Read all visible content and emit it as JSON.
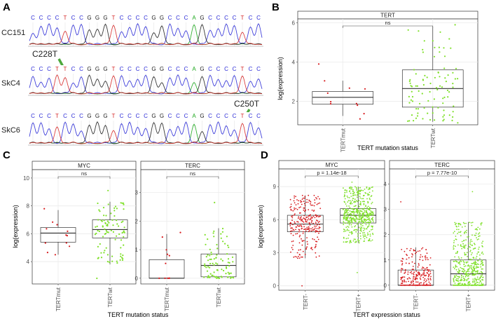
{
  "figure": {
    "panel_labels": [
      "A",
      "B",
      "C",
      "D"
    ],
    "colors": {
      "mut": "#d7191c",
      "wt": "#7fe02a",
      "box": "#333333",
      "grid": "#ebebeb",
      "strip_fill": "#ffffff",
      "arrow": "#4ea83c"
    }
  },
  "panelA": {
    "rows": [
      {
        "label": "CC151",
        "bases": "CCCCTCCGGGTCCCCGGCCCAGCCCCTCC"
      },
      {
        "label": "SkC4",
        "bases": "CCCTTCCGGGTCCCCGGCCCAGCCCCTCC",
        "mutation": "C228T"
      },
      {
        "label": "SkC6",
        "bases": "CCCTCCCGGGTCCCCGGCCCAGCCCCTCC",
        "mutation": "C250T"
      }
    ],
    "base_colors": {
      "A": "#1fa81f",
      "C": "#2b2bd6",
      "G": "#222222",
      "T": "#d62b2b"
    }
  },
  "chart_data": [
    {
      "id": "B",
      "type": "boxplot",
      "strips": [
        "TERT"
      ],
      "categories": [
        "TERTmut",
        "TERTwt"
      ],
      "ylabel": "log(expression)",
      "xlabel": "TERT mutation status",
      "ylim": [
        0.8,
        6.2
      ],
      "yticks": [
        2,
        4,
        6
      ],
      "facets": [
        {
          "name": "TERT",
          "annotation": "ns",
          "groups": [
            {
              "q1": 1.85,
              "median": 2.2,
              "q3": 2.5,
              "whislo": 1.25,
              "whishi": 3.05,
              "n": 11,
              "min": 1.1,
              "max": 3.9
            },
            {
              "q1": 1.7,
              "median": 2.65,
              "q3": 3.6,
              "whislo": 0.95,
              "whishi": 5.8,
              "n": 95,
              "min": 0.9,
              "max": 5.9
            }
          ]
        }
      ]
    },
    {
      "id": "C",
      "type": "boxplot",
      "strips": [
        "MYC",
        "TERC"
      ],
      "categories": [
        "TERTmut",
        "TERTwt"
      ],
      "ylabel": "log(expression)",
      "xlabel": "TERT mutation status",
      "facets": [
        {
          "name": "MYC",
          "annotation": "ns",
          "ylim": [
            2.4,
            10.6
          ],
          "yticks": [
            4,
            6,
            8,
            10
          ],
          "groups": [
            {
              "q1": 5.4,
              "median": 6.05,
              "q3": 6.45,
              "whislo": 4.5,
              "whishi": 7.7,
              "n": 12,
              "min": 4.5,
              "max": 7.8
            },
            {
              "q1": 5.7,
              "median": 6.3,
              "q3": 7.0,
              "whislo": 3.8,
              "whishi": 8.3,
              "n": 90,
              "min": 2.8,
              "max": 9.1
            }
          ]
        },
        {
          "name": "TERC",
          "annotation": "ns",
          "ylim": [
            -0.2,
            3.8
          ],
          "yticks": [
            0,
            1,
            2,
            3
          ],
          "groups": [
            {
              "q1": 0.0,
              "median": 0.0,
              "q3": 0.65,
              "whislo": 0.0,
              "whishi": 1.55,
              "n": 11,
              "min": 0.0,
              "max": 1.6
            },
            {
              "q1": 0.05,
              "median": 0.45,
              "q3": 0.85,
              "whislo": 0.0,
              "whishi": 1.75,
              "n": 90,
              "min": 0.0,
              "max": 2.65
            }
          ]
        }
      ]
    },
    {
      "id": "D",
      "type": "boxplot",
      "strips": [
        "MYC",
        "TERC"
      ],
      "categories": [
        "TERT-",
        "TERT+"
      ],
      "ylabel": "log(expression)",
      "xlabel": "TERT expression status",
      "facets": [
        {
          "name": "MYC",
          "annotation": "p = 1.14e-18",
          "ylim": [
            -0.4,
            10.6
          ],
          "yticks": [
            0,
            3,
            6,
            9
          ],
          "groups": [
            {
              "q1": 4.9,
              "median": 5.6,
              "q3": 6.4,
              "whislo": 2.5,
              "whishi": 8.2,
              "n": 260,
              "min": 0.0,
              "max": 8.2
            },
            {
              "q1": 5.7,
              "median": 6.4,
              "q3": 7.0,
              "whislo": 3.9,
              "whishi": 9.0,
              "n": 520,
              "min": 1.2,
              "max": 9.4
            }
          ]
        },
        {
          "name": "TERC",
          "annotation": "p = 7.77e-10",
          "ylim": [
            -0.2,
            4.6
          ],
          "yticks": [
            0,
            1,
            2,
            3,
            4
          ],
          "groups": [
            {
              "q1": 0.0,
              "median": 0.0,
              "q3": 0.6,
              "whislo": 0.0,
              "whishi": 1.5,
              "n": 260,
              "min": 0.0,
              "max": 3.3
            },
            {
              "q1": 0.0,
              "median": 0.45,
              "q3": 1.0,
              "whislo": 0.0,
              "whishi": 2.5,
              "n": 520,
              "min": 0.0,
              "max": 3.7
            }
          ]
        }
      ]
    }
  ]
}
